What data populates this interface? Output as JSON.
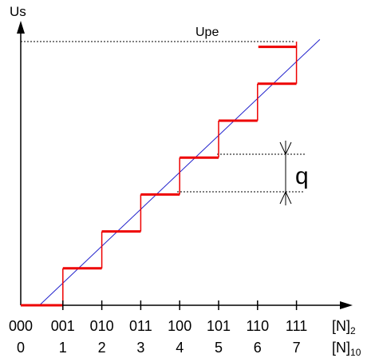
{
  "colors": {
    "staircase": "#ee0000",
    "ideal_line": "#2222cc",
    "axis": "#000000",
    "guides": "#000000"
  },
  "labels": {
    "y_axis": "Us",
    "upe": "Upe",
    "q": "q",
    "x_binary": "[N]",
    "x_binary_sub": "2",
    "x_decimal": "[N]",
    "x_decimal_sub": "10"
  },
  "codes": [
    {
      "bin": "000",
      "dec": "0"
    },
    {
      "bin": "001",
      "dec": "1"
    },
    {
      "bin": "010",
      "dec": "2"
    },
    {
      "bin": "011",
      "dec": "3"
    },
    {
      "bin": "100",
      "dec": "4"
    },
    {
      "bin": "101",
      "dec": "5"
    },
    {
      "bin": "110",
      "dec": "6"
    },
    {
      "bin": "111",
      "dec": "7"
    }
  ],
  "chart_data": {
    "type": "line",
    "xlabel": "[N]2 / [N]10",
    "ylabel": "Us",
    "x": [
      0,
      1,
      2,
      3,
      4,
      5,
      6,
      7
    ],
    "series": [
      {
        "values": [
          0,
          1,
          2,
          3,
          4,
          5,
          6,
          7
        ]
      }
    ],
    "grid": false
  }
}
